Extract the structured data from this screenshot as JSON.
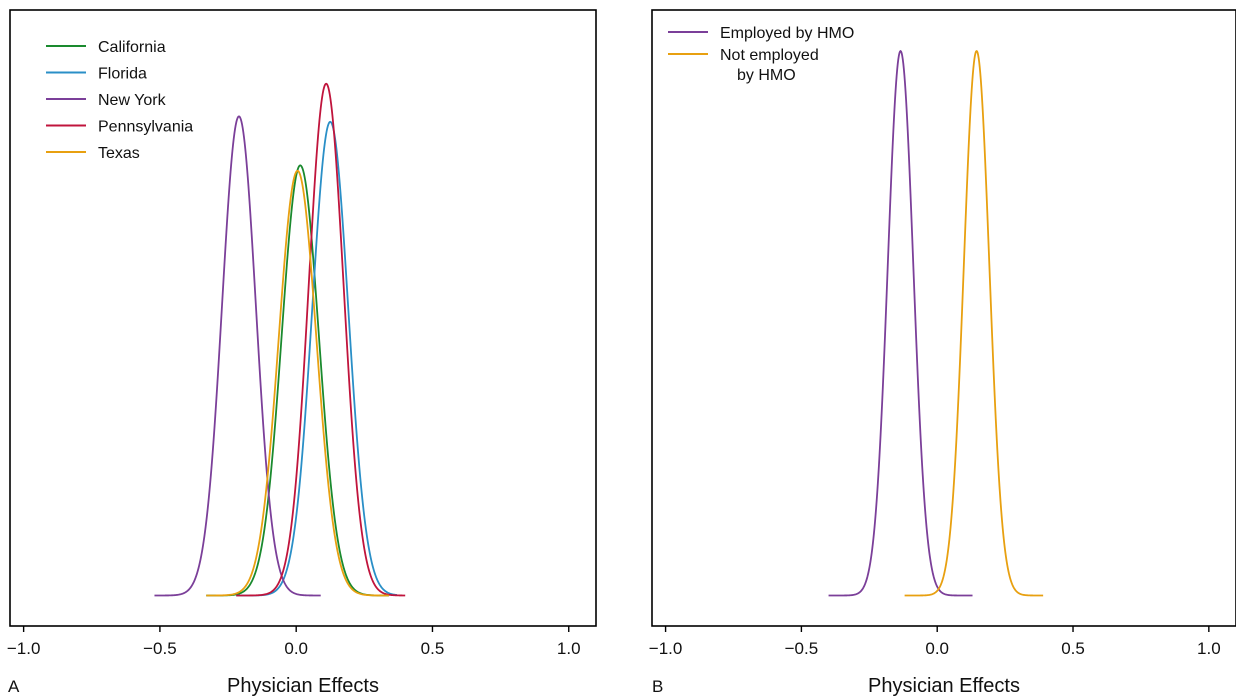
{
  "chart_data": [
    {
      "panel_label": "A",
      "type": "line",
      "xlabel": "Physician Effects",
      "ylabel": "",
      "xlim": [
        -1.05,
        1.1
      ],
      "xticks": [
        -1.0,
        -0.5,
        0.0,
        0.5,
        1.0
      ],
      "xtick_labels": [
        "−1.0",
        "−0.5",
        "0.0",
        "0.5",
        "1.0"
      ],
      "yticks": "none",
      "grid": false,
      "legend_position": "top-left",
      "series": [
        {
          "name": "California",
          "color": "#1a8a2e",
          "mean": 0.015,
          "sd": 0.068,
          "peak": 0.79,
          "range": [
            -0.33,
            0.34
          ]
        },
        {
          "name": "Florida",
          "color": "#2a8fc7",
          "mean": 0.125,
          "sd": 0.066,
          "peak": 0.87,
          "range": [
            -0.22,
            0.37
          ]
        },
        {
          "name": "New York",
          "color": "#7b3f99",
          "mean": -0.21,
          "sd": 0.062,
          "peak": 0.88,
          "range": [
            -0.52,
            0.09
          ]
        },
        {
          "name": "Pennsylvania",
          "color": "#c0143c",
          "mean": 0.11,
          "sd": 0.064,
          "peak": 0.94,
          "range": [
            -0.22,
            0.4
          ]
        },
        {
          "name": "Texas",
          "color": "#e8a010",
          "mean": 0.005,
          "sd": 0.069,
          "peak": 0.78,
          "range": [
            -0.33,
            0.34
          ]
        }
      ]
    },
    {
      "panel_label": "B",
      "type": "line",
      "xlabel": "Physician Effects",
      "ylabel": "",
      "xlim": [
        -1.05,
        1.1
      ],
      "xticks": [
        -1.0,
        -0.5,
        0.0,
        0.5,
        1.0
      ],
      "xtick_labels": [
        "−1.0",
        "−0.5",
        "0.0",
        "0.5",
        "1.0"
      ],
      "yticks": "none",
      "grid": false,
      "legend_position": "top-left",
      "series": [
        {
          "name": "Employed by HMO",
          "legend_lines": [
            "Employed by HMO"
          ],
          "color": "#7b3f99",
          "mean": -0.135,
          "sd": 0.047,
          "peak": 1.0,
          "range": [
            -0.4,
            0.13
          ]
        },
        {
          "name": "Not employed by HMO",
          "legend_lines": [
            "Not employed",
            "by HMO"
          ],
          "color": "#e8a010",
          "mean": 0.145,
          "sd": 0.047,
          "peak": 1.0,
          "range": [
            -0.12,
            0.39
          ]
        }
      ]
    }
  ]
}
